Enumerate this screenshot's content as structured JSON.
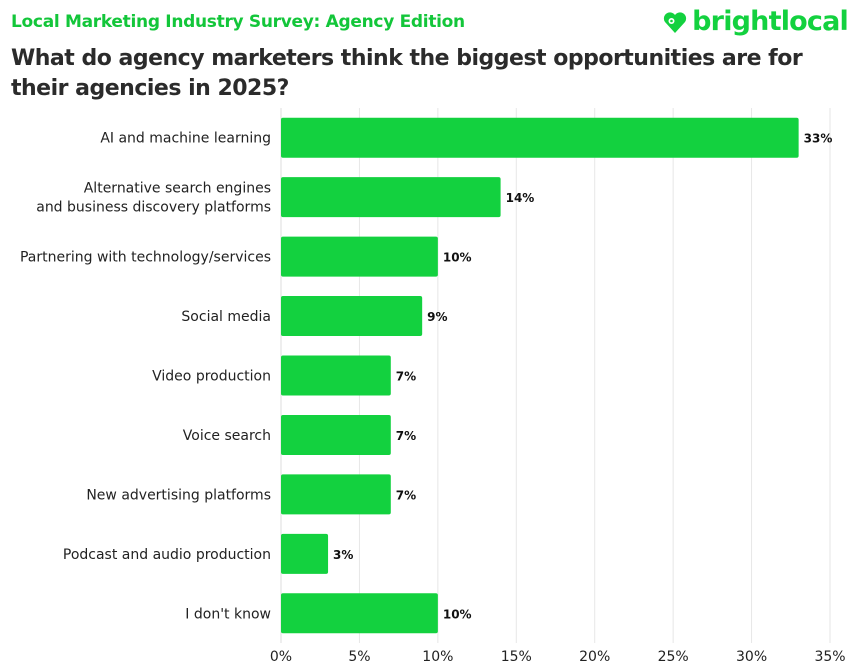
{
  "header": {
    "subtitle": "Local Marketing Industry Survey: Agency Edition",
    "title": "What do agency marketers think the biggest opportunities are for their agencies in 2025?",
    "logo_text": "brightlocal",
    "logo_icon": "heart-pin-icon"
  },
  "colors": {
    "bar": "#13d13f",
    "accent": "#13c63a",
    "grid": "#e6e6e6"
  },
  "chart_data": {
    "type": "bar",
    "orientation": "horizontal",
    "categories": [
      [
        "AI and machine learning"
      ],
      [
        "Alternative search engines",
        "and business discovery platforms"
      ],
      [
        "Partnering with technology/services"
      ],
      [
        "Social media"
      ],
      [
        "Video production"
      ],
      [
        "Voice search"
      ],
      [
        "New advertising platforms"
      ],
      [
        "Podcast and audio production"
      ],
      [
        "I don't know"
      ]
    ],
    "values": [
      33,
      14,
      10,
      9,
      7,
      7,
      7,
      3,
      10
    ],
    "value_labels": [
      "33%",
      "14%",
      "10%",
      "9%",
      "7%",
      "7%",
      "7%",
      "3%",
      "10%"
    ],
    "xlim": [
      0,
      35
    ],
    "xticks": [
      0,
      5,
      10,
      15,
      20,
      25,
      30,
      35
    ],
    "xtick_labels": [
      "0%",
      "5%",
      "10%",
      "15%",
      "20%",
      "25%",
      "30%",
      "35%"
    ],
    "grid": true,
    "legend": "none"
  }
}
